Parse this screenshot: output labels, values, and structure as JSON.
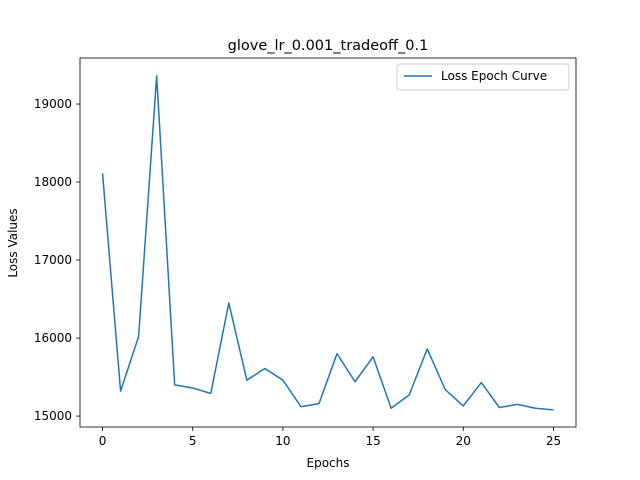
{
  "chart_data": {
    "type": "line",
    "title": "glove_lr_0.001_tradeoff_0.1",
    "xlabel": "Epochs",
    "ylabel": "Loss Values",
    "xlim": [
      -1.25,
      26.25
    ],
    "ylim": [
      14860,
      19590
    ],
    "xticks": [
      0,
      5,
      10,
      15,
      20,
      25
    ],
    "yticks": [
      15000,
      16000,
      17000,
      18000,
      19000
    ],
    "grid": false,
    "legend_position": "top-right",
    "colors": {
      "line": "#1f77b4"
    },
    "series": [
      {
        "name": "Loss Epoch Curve",
        "x": [
          0,
          1,
          2,
          3,
          4,
          5,
          6,
          7,
          8,
          9,
          10,
          11,
          12,
          13,
          14,
          15,
          16,
          17,
          18,
          19,
          20,
          21,
          22,
          23,
          24,
          25
        ],
        "values": [
          18110,
          15320,
          16020,
          19360,
          15400,
          15360,
          15290,
          16450,
          15460,
          15610,
          15460,
          15120,
          15160,
          15800,
          15440,
          15760,
          15100,
          15270,
          15860,
          15340,
          15130,
          15430,
          15110,
          15150,
          15100,
          15080
        ]
      }
    ]
  }
}
